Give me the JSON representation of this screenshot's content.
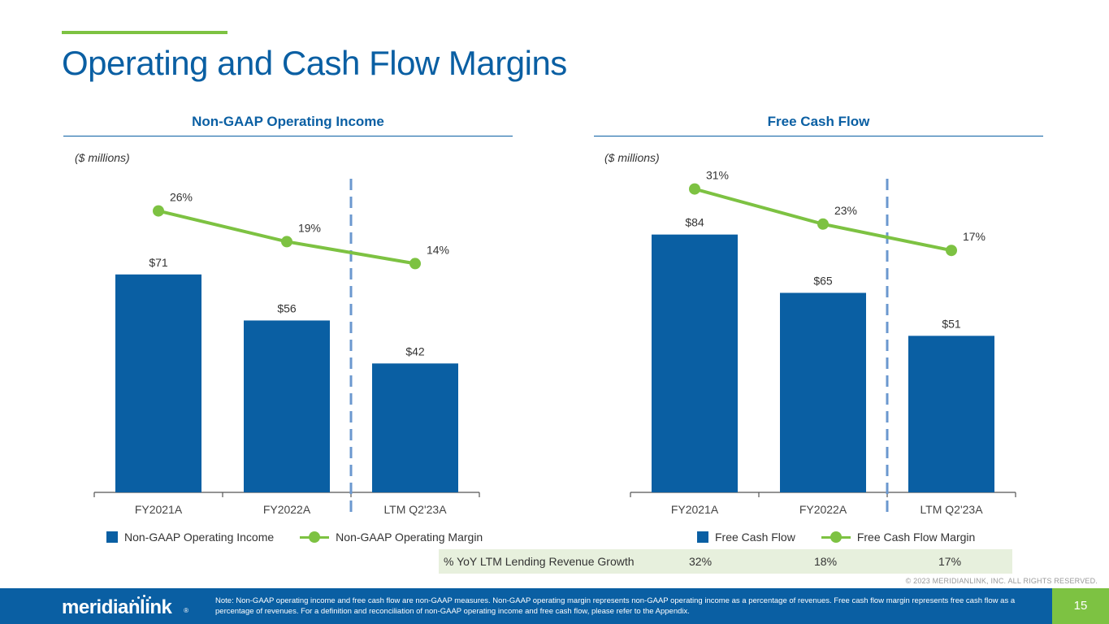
{
  "header": {
    "title": "Operating and Cash Flow Margins"
  },
  "colors": {
    "brand_blue": "#0a5fa3",
    "accent_green": "#7dc242",
    "divider_blue": "#6b98cf",
    "table_bg": "#e7f0dd"
  },
  "chart_data": [
    {
      "type": "bar",
      "title": "Non-GAAP Operating Income",
      "units": "($ millions)",
      "categories": [
        "FY2021A",
        "FY2022A",
        "LTM Q2'23A"
      ],
      "series": [
        {
          "name": "Non-GAAP Operating Income",
          "type": "bar",
          "values": [
            71,
            56,
            42
          ],
          "labels": [
            "$71",
            "$56",
            "$42"
          ]
        },
        {
          "name": "Non-GAAP Operating Margin",
          "type": "line",
          "values": [
            26,
            19,
            14
          ],
          "labels": [
            "26%",
            "19%",
            "14%"
          ]
        }
      ],
      "ylim": [
        0,
        90
      ],
      "line_ylim": [
        0,
        50
      ]
    },
    {
      "type": "bar",
      "title": "Free Cash Flow",
      "units": "($ millions)",
      "categories": [
        "FY2021A",
        "FY2022A",
        "LTM Q2'23A"
      ],
      "series": [
        {
          "name": "Free Cash Flow",
          "type": "bar",
          "values": [
            84,
            65,
            51
          ],
          "labels": [
            "$84",
            "$65",
            "$51"
          ]
        },
        {
          "name": "Free Cash Flow Margin",
          "type": "line",
          "values": [
            31,
            23,
            17
          ],
          "labels": [
            "31%",
            "23%",
            "17%"
          ]
        }
      ],
      "ylim": [
        0,
        90
      ],
      "line_ylim": [
        0,
        50
      ]
    }
  ],
  "growth_table": {
    "label": "% YoY LTM Lending Revenue Growth",
    "values": [
      "32%",
      "18%",
      "17%"
    ]
  },
  "copyright": "© 2023 MERIDIANLINK, INC. ALL RIGHTS RESERVED.",
  "footer": {
    "logo_text": "meridianlink",
    "logo_mark": "®",
    "note": "Note: Non-GAAP operating income and free cash flow are non-GAAP measures. Non-GAAP operating margin represents non-GAAP operating income as a percentage of revenues. Free cash flow margin represents free cash flow as a percentage of revenues. For a definition and reconciliation of non-GAAP operating income and free cash flow, please refer to the Appendix.",
    "page_number": "15"
  }
}
